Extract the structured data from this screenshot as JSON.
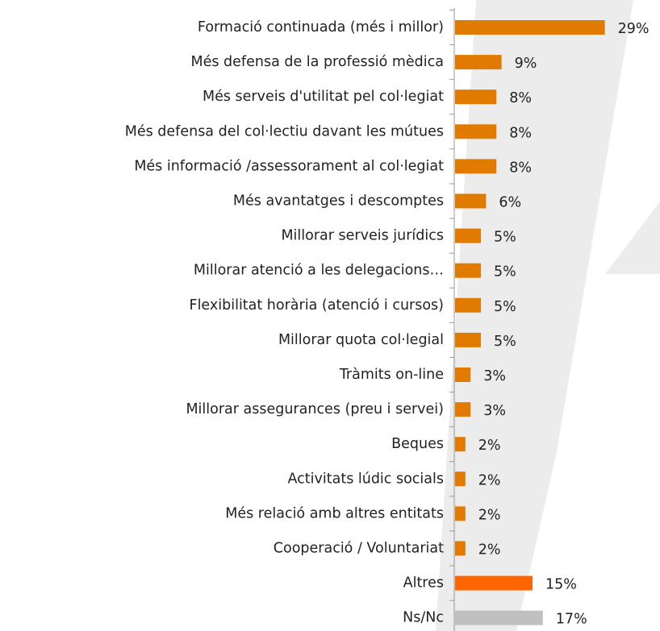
{
  "chart_data": {
    "type": "hbar",
    "categories": [
      "Formació continuada (més i millor)",
      "Més defensa de la professió mèdica",
      "Més serveis d'utilitat pel col·legiat",
      "Més defensa del col·lectiu davant les mútues",
      "Més informació /assessorament al col·legiat",
      "Més avantatges i descomptes",
      "Millorar serveis jurídics",
      "Millorar atenció a les delegacions…",
      "Flexibilitat horària (atenció i cursos)",
      "Millorar quota col·legial",
      "Tràmits on-line",
      "Millorar assegurances (preu i servei)",
      "Beques",
      "Activitats lúdic socials",
      "Més relació amb altres entitats",
      "Cooperació / Voluntariat",
      "Altres",
      "Ns/Nc"
    ],
    "values": [
      29,
      9,
      8,
      8,
      8,
      6,
      5,
      5,
      5,
      5,
      3,
      3,
      2,
      2,
      2,
      2,
      15,
      17
    ],
    "value_labels": [
      "29%",
      "9%",
      "8%",
      "8%",
      "8%",
      "6%",
      "5%",
      "5%",
      "5%",
      "5%",
      "3%",
      "3%",
      "2%",
      "2%",
      "2%",
      "2%",
      "15%",
      "17%"
    ],
    "colors": [
      "#e07b00",
      "#e07b00",
      "#e07b00",
      "#e07b00",
      "#e07b00",
      "#e07b00",
      "#e07b00",
      "#e07b00",
      "#e07b00",
      "#e07b00",
      "#e07b00",
      "#e07b00",
      "#e07b00",
      "#e07b00",
      "#e07b00",
      "#e07b00",
      "#ff6600",
      "#c0c0c0"
    ]
  }
}
